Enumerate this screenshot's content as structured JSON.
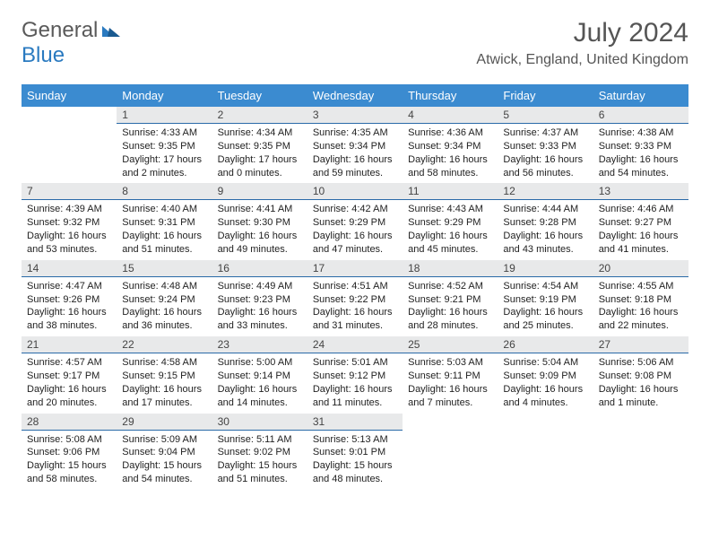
{
  "logo": {
    "general": "General",
    "blue": "Blue"
  },
  "title": {
    "month_year": "July 2024",
    "location": "Atwick, England, United Kingdom"
  },
  "weekdays": [
    "Sunday",
    "Monday",
    "Tuesday",
    "Wednesday",
    "Thursday",
    "Friday",
    "Saturday"
  ],
  "colors": {
    "header_bg": "#3b8bd0",
    "daynum_bg": "#e8e9ea",
    "daynum_border": "#2a6aa8",
    "text": "#222222",
    "title_text": "#555555"
  },
  "days": {
    "1": {
      "sunrise": "4:33 AM",
      "sunset": "9:35 PM",
      "daylight": "17 hours and 2 minutes."
    },
    "2": {
      "sunrise": "4:34 AM",
      "sunset": "9:35 PM",
      "daylight": "17 hours and 0 minutes."
    },
    "3": {
      "sunrise": "4:35 AM",
      "sunset": "9:34 PM",
      "daylight": "16 hours and 59 minutes."
    },
    "4": {
      "sunrise": "4:36 AM",
      "sunset": "9:34 PM",
      "daylight": "16 hours and 58 minutes."
    },
    "5": {
      "sunrise": "4:37 AM",
      "sunset": "9:33 PM",
      "daylight": "16 hours and 56 minutes."
    },
    "6": {
      "sunrise": "4:38 AM",
      "sunset": "9:33 PM",
      "daylight": "16 hours and 54 minutes."
    },
    "7": {
      "sunrise": "4:39 AM",
      "sunset": "9:32 PM",
      "daylight": "16 hours and 53 minutes."
    },
    "8": {
      "sunrise": "4:40 AM",
      "sunset": "9:31 PM",
      "daylight": "16 hours and 51 minutes."
    },
    "9": {
      "sunrise": "4:41 AM",
      "sunset": "9:30 PM",
      "daylight": "16 hours and 49 minutes."
    },
    "10": {
      "sunrise": "4:42 AM",
      "sunset": "9:29 PM",
      "daylight": "16 hours and 47 minutes."
    },
    "11": {
      "sunrise": "4:43 AM",
      "sunset": "9:29 PM",
      "daylight": "16 hours and 45 minutes."
    },
    "12": {
      "sunrise": "4:44 AM",
      "sunset": "9:28 PM",
      "daylight": "16 hours and 43 minutes."
    },
    "13": {
      "sunrise": "4:46 AM",
      "sunset": "9:27 PM",
      "daylight": "16 hours and 41 minutes."
    },
    "14": {
      "sunrise": "4:47 AM",
      "sunset": "9:26 PM",
      "daylight": "16 hours and 38 minutes."
    },
    "15": {
      "sunrise": "4:48 AM",
      "sunset": "9:24 PM",
      "daylight": "16 hours and 36 minutes."
    },
    "16": {
      "sunrise": "4:49 AM",
      "sunset": "9:23 PM",
      "daylight": "16 hours and 33 minutes."
    },
    "17": {
      "sunrise": "4:51 AM",
      "sunset": "9:22 PM",
      "daylight": "16 hours and 31 minutes."
    },
    "18": {
      "sunrise": "4:52 AM",
      "sunset": "9:21 PM",
      "daylight": "16 hours and 28 minutes."
    },
    "19": {
      "sunrise": "4:54 AM",
      "sunset": "9:19 PM",
      "daylight": "16 hours and 25 minutes."
    },
    "20": {
      "sunrise": "4:55 AM",
      "sunset": "9:18 PM",
      "daylight": "16 hours and 22 minutes."
    },
    "21": {
      "sunrise": "4:57 AM",
      "sunset": "9:17 PM",
      "daylight": "16 hours and 20 minutes."
    },
    "22": {
      "sunrise": "4:58 AM",
      "sunset": "9:15 PM",
      "daylight": "16 hours and 17 minutes."
    },
    "23": {
      "sunrise": "5:00 AM",
      "sunset": "9:14 PM",
      "daylight": "16 hours and 14 minutes."
    },
    "24": {
      "sunrise": "5:01 AM",
      "sunset": "9:12 PM",
      "daylight": "16 hours and 11 minutes."
    },
    "25": {
      "sunrise": "5:03 AM",
      "sunset": "9:11 PM",
      "daylight": "16 hours and 7 minutes."
    },
    "26": {
      "sunrise": "5:04 AM",
      "sunset": "9:09 PM",
      "daylight": "16 hours and 4 minutes."
    },
    "27": {
      "sunrise": "5:06 AM",
      "sunset": "9:08 PM",
      "daylight": "16 hours and 1 minute."
    },
    "28": {
      "sunrise": "5:08 AM",
      "sunset": "9:06 PM",
      "daylight": "15 hours and 58 minutes."
    },
    "29": {
      "sunrise": "5:09 AM",
      "sunset": "9:04 PM",
      "daylight": "15 hours and 54 minutes."
    },
    "30": {
      "sunrise": "5:11 AM",
      "sunset": "9:02 PM",
      "daylight": "15 hours and 51 minutes."
    },
    "31": {
      "sunrise": "5:13 AM",
      "sunset": "9:01 PM",
      "daylight": "15 hours and 48 minutes."
    }
  },
  "labels": {
    "sunrise": "Sunrise: ",
    "sunset": "Sunset: ",
    "daylight": "Daylight: "
  },
  "grid": [
    [
      null,
      "1",
      "2",
      "3",
      "4",
      "5",
      "6"
    ],
    [
      "7",
      "8",
      "9",
      "10",
      "11",
      "12",
      "13"
    ],
    [
      "14",
      "15",
      "16",
      "17",
      "18",
      "19",
      "20"
    ],
    [
      "21",
      "22",
      "23",
      "24",
      "25",
      "26",
      "27"
    ],
    [
      "28",
      "29",
      "30",
      "31",
      null,
      null,
      null
    ]
  ]
}
